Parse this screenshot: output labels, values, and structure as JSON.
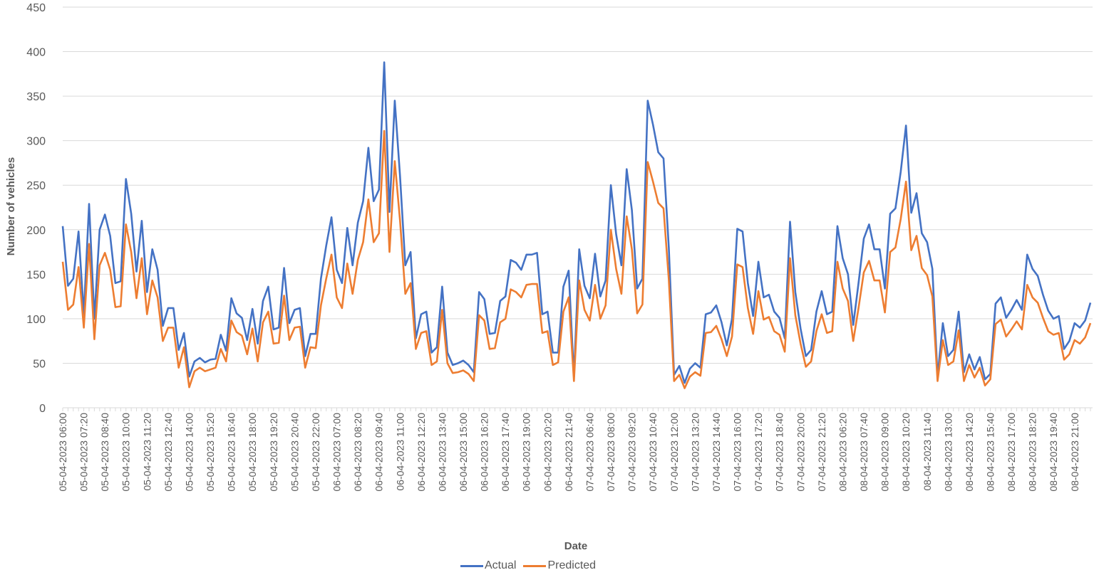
{
  "chart_data": {
    "type": "line",
    "title": "",
    "xlabel": "Date",
    "ylabel": "Number of vehicles",
    "ylim": [
      0,
      450
    ],
    "yticks": [
      0,
      50,
      100,
      150,
      200,
      250,
      300,
      350,
      400,
      450
    ],
    "grid": true,
    "legend_position": "bottom",
    "x_tick_labels": [
      "05-04-2023 06:00",
      "05-04-2023 07:20",
      "05-04-2023 08:40",
      "05-04-2023 10:00",
      "05-04-2023 11:20",
      "05-04-2023 12:40",
      "05-04-2023 14:00",
      "05-04-2023 15:20",
      "05-04-2023 16:40",
      "05-04-2023 18:00",
      "05-04-2023 19:20",
      "05-04-2023 20:40",
      "05-04-2023 22:00",
      "06-04-2023 07:00",
      "06-04-2023 08:20",
      "06-04-2023 09:40",
      "06-04-2023 11:00",
      "06-04-2023 12:20",
      "06-04-2023 13:40",
      "06-04-2023 15:00",
      "06-04-2023 16:20",
      "06-04-2023 17:40",
      "06-04-2023 19:00",
      "06-04-2023 20:20",
      "06-04-2023 21:40",
      "07-04-2023 06:40",
      "07-04-2023 08:00",
      "07-04-2023 09:20",
      "07-04-2023 10:40",
      "07-04-2023 12:00",
      "07-04-2023 13:20",
      "07-04-2023 14:40",
      "07-04-2023 16:00",
      "07-04-2023 17:20",
      "07-04-2023 18:40",
      "07-04-2023 20:00",
      "07-04-2023 21:20",
      "08-04-2023 06:20",
      "08-04-2023 07:40",
      "08-04-2023 09:00",
      "08-04-2023 10:20",
      "08-04-2023 11:40",
      "08-04-2023 13:00",
      "08-04-2023 14:20",
      "08-04-2023 15:40",
      "08-04-2023 17:00",
      "08-04-2023 18:20",
      "08-04-2023 19:40",
      "08-04-2023 21:00"
    ],
    "x_tick_every": 4,
    "series": [
      {
        "name": "Actual",
        "color": "#4472C4",
        "values": [
          204,
          137,
          145,
          198,
          105,
          229,
          100,
          200,
          217,
          193,
          140,
          142,
          257,
          218,
          153,
          210,
          130,
          178,
          155,
          92,
          112,
          112,
          65,
          84,
          35,
          52,
          56,
          51,
          54,
          55,
          82,
          64,
          123,
          106,
          101,
          76,
          111,
          72,
          120,
          136,
          88,
          90,
          157,
          95,
          110,
          112,
          58,
          83,
          83,
          145,
          182,
          214,
          155,
          140,
          202,
          160,
          208,
          232,
          292,
          232,
          245,
          388,
          220,
          345,
          260,
          160,
          175,
          78,
          105,
          108,
          62,
          68,
          136,
          62,
          48,
          50,
          53,
          48,
          40,
          130,
          122,
          83,
          84,
          120,
          125,
          166,
          163,
          155,
          172,
          172,
          174,
          105,
          108,
          62,
          62,
          136,
          154,
          35,
          178,
          137,
          123,
          173,
          125,
          143,
          250,
          195,
          160,
          268,
          222,
          134,
          145,
          345,
          318,
          287,
          280,
          180,
          37,
          47,
          28,
          44,
          50,
          45,
          105,
          107,
          115,
          96,
          70,
          100,
          201,
          198,
          140,
          103,
          164,
          124,
          127,
          108,
          101,
          78,
          209,
          130,
          89,
          58,
          65,
          108,
          131,
          105,
          108,
          204,
          168,
          150,
          93,
          140,
          190,
          206,
          178,
          178,
          134,
          218,
          224,
          265,
          317,
          219,
          241,
          196,
          186,
          156,
          35,
          95,
          58,
          65,
          108,
          40,
          60,
          43,
          57,
          32,
          38,
          117,
          124,
          101,
          110,
          121,
          110,
          172,
          156,
          148,
          127,
          109,
          100,
          103,
          66,
          75,
          95,
          90,
          98,
          118
        ]
      },
      {
        "name": "Predicted",
        "color": "#ED7D31",
        "values": [
          164,
          110,
          116,
          158,
          90,
          184,
          77,
          160,
          174,
          155,
          113,
          114,
          206,
          175,
          123,
          168,
          105,
          143,
          124,
          75,
          90,
          90,
          45,
          68,
          23,
          41,
          45,
          41,
          43,
          45,
          66,
          52,
          98,
          85,
          81,
          60,
          89,
          52,
          96,
          108,
          72,
          73,
          126,
          76,
          90,
          91,
          45,
          68,
          67,
          115,
          145,
          172,
          124,
          112,
          162,
          128,
          166,
          186,
          234,
          186,
          196,
          311,
          175,
          277,
          210,
          128,
          140,
          66,
          84,
          86,
          48,
          52,
          110,
          50,
          39,
          40,
          42,
          38,
          30,
          104,
          98,
          66,
          67,
          96,
          100,
          133,
          130,
          124,
          138,
          139,
          139,
          84,
          86,
          48,
          51,
          108,
          124,
          30,
          143,
          110,
          98,
          138,
          100,
          115,
          200,
          156,
          128,
          215,
          178,
          106,
          116,
          276,
          254,
          230,
          224,
          144,
          30,
          37,
          22,
          35,
          40,
          36,
          84,
          85,
          92,
          77,
          58,
          80,
          161,
          158,
          112,
          83,
          131,
          99,
          102,
          86,
          82,
          63,
          168,
          104,
          72,
          46,
          52,
          86,
          105,
          84,
          86,
          164,
          134,
          120,
          75,
          112,
          152,
          165,
          143,
          143,
          107,
          175,
          180,
          212,
          254,
          177,
          193,
          157,
          149,
          125,
          30,
          76,
          48,
          52,
          87,
          30,
          48,
          34,
          45,
          25,
          32,
          94,
          99,
          80,
          88,
          97,
          88,
          138,
          124,
          118,
          101,
          86,
          82,
          84,
          54,
          60,
          76,
          72,
          79,
          95
        ]
      }
    ]
  },
  "legend": {
    "items": [
      {
        "label": "Actual",
        "color": "#4472C4"
      },
      {
        "label": "Predicted",
        "color": "#ED7D31"
      }
    ]
  }
}
